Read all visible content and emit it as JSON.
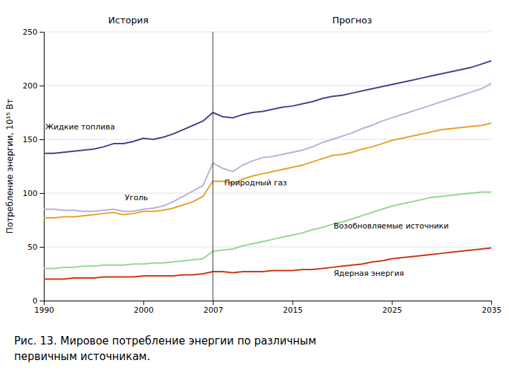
{
  "chart_data": {
    "type": "line",
    "ylabel": "Потребление энергии, 10¹⁵ Вт",
    "section_labels": [
      "История",
      "Прогноз"
    ],
    "divider": 2007,
    "caption": [
      "Рис. 13. Мировое потребление энергии по различным",
      "первичным источникам."
    ],
    "xlim": [
      1990,
      2035
    ],
    "xticks": [
      1990,
      2000,
      2007,
      2015,
      2025,
      2035
    ],
    "ylim": [
      0,
      250
    ],
    "yticks": [
      0,
      50,
      100,
      150,
      200,
      250
    ],
    "grid": true,
    "x": [
      1990,
      1991,
      1992,
      1993,
      1994,
      1995,
      1996,
      1997,
      1998,
      1999,
      2000,
      2001,
      2002,
      2003,
      2004,
      2005,
      2006,
      2007,
      2008,
      2009,
      2010,
      2011,
      2012,
      2013,
      2014,
      2015,
      2016,
      2017,
      2018,
      2019,
      2020,
      2021,
      2022,
      2023,
      2024,
      2025,
      2026,
      2027,
      2028,
      2029,
      2030,
      2031,
      2032,
      2033,
      2034,
      2035
    ],
    "series": [
      {
        "color": "#90d890",
        "values": [
          30,
          30,
          31,
          31,
          32,
          32,
          33,
          33,
          33,
          34,
          34,
          35,
          35,
          36,
          37,
          38,
          39,
          46,
          47,
          48,
          51,
          53,
          55,
          57,
          59,
          61,
          63,
          66,
          68,
          71,
          73,
          76,
          79,
          82,
          85,
          88,
          90,
          92,
          94,
          96,
          97,
          98,
          99,
          100,
          101,
          101
        ]
      },
      {
        "color": "#cc3311",
        "values": [
          20,
          20,
          20,
          21,
          21,
          21,
          22,
          22,
          22,
          22,
          23,
          23,
          23,
          23,
          24,
          24,
          25,
          27,
          27,
          26,
          27,
          27,
          27,
          28,
          28,
          28,
          29,
          29,
          30,
          31,
          32,
          33,
          34,
          36,
          37,
          39,
          40,
          41,
          42,
          43,
          44,
          45,
          46,
          47,
          48,
          49
        ]
      },
      {
        "color": "#e8a020",
        "values": [
          77,
          77,
          78,
          78,
          79,
          80,
          81,
          82,
          80,
          81,
          83,
          83,
          84,
          86,
          89,
          92,
          97,
          111,
          111,
          109,
          113,
          116,
          118,
          120,
          122,
          124,
          126,
          129,
          132,
          135,
          136,
          138,
          141,
          143,
          146,
          149,
          151,
          153,
          155,
          157,
          159,
          160,
          161,
          162,
          163,
          165
        ]
      },
      {
        "color": "#b8b0d8",
        "values": [
          85,
          85,
          84,
          84,
          83,
          83,
          84,
          85,
          83,
          83,
          85,
          86,
          88,
          92,
          97,
          102,
          107,
          128,
          123,
          120,
          126,
          130,
          133,
          134,
          136,
          138,
          140,
          143,
          147,
          150,
          153,
          156,
          160,
          163,
          167,
          170,
          173,
          176,
          179,
          182,
          185,
          188,
          191,
          194,
          197,
          202
        ]
      },
      {
        "color": "#483d8b",
        "values": [
          137,
          137,
          138,
          139,
          140,
          141,
          143,
          146,
          146,
          148,
          151,
          150,
          152,
          155,
          159,
          163,
          167,
          175,
          171,
          170,
          173,
          175,
          176,
          178,
          180,
          181,
          183,
          185,
          188,
          190,
          191,
          193,
          195,
          197,
          199,
          201,
          203,
          205,
          207,
          209,
          211,
          213,
          215,
          217,
          220,
          223
        ]
      }
    ],
    "annotations": [
      {
        "text": "Жидкие топлива",
        "x": 1990,
        "y": 158
      },
      {
        "text": "Уголь",
        "x": 1998,
        "y": 92
      },
      {
        "text": "Природный газ",
        "x": 2008,
        "y": 106
      },
      {
        "text": "Возобновляемые источники",
        "x": 2019,
        "y": 66
      },
      {
        "text": "Ядерная энергия",
        "x": 2019,
        "y": 22
      }
    ]
  }
}
